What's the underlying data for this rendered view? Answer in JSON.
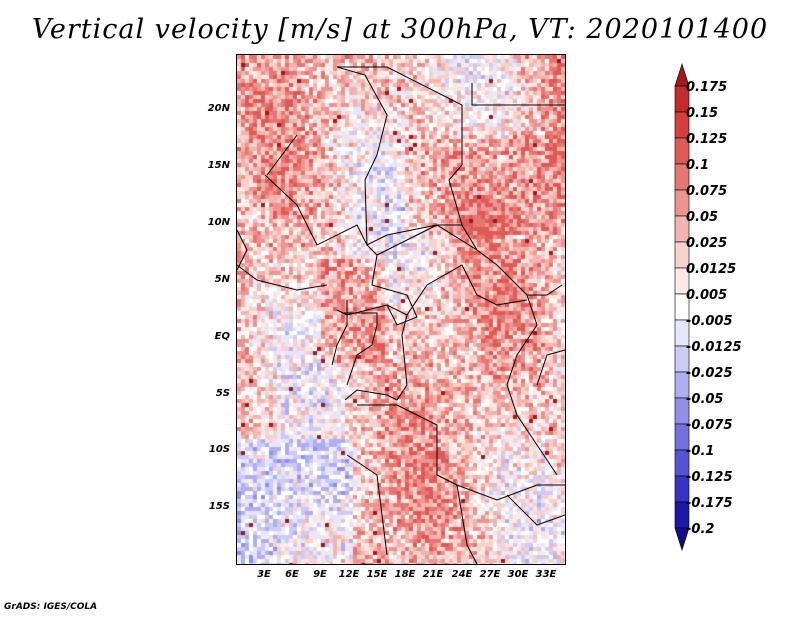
{
  "title": "Vertical velocity [m/s] at 300hPa, VT: 2020101400",
  "footer": "GrADS: IGES/COLA",
  "chart_data": {
    "type": "heatmap",
    "variable": "Vertical velocity",
    "units": "m/s",
    "level": "300hPa",
    "valid_time": "2020101400",
    "lat_ticks": [
      "20N",
      "15N",
      "10N",
      "5N",
      "EQ",
      "5S",
      "10S",
      "15S"
    ],
    "lon_ticks": [
      "3E",
      "6E",
      "9E",
      "12E",
      "15E",
      "18E",
      "21E",
      "24E",
      "27E",
      "30E",
      "33E"
    ],
    "colorbar": {
      "labels": [
        "0.175",
        "0.15",
        "0.125",
        "0.1",
        "0.075",
        "0.05",
        "0.025",
        "0.0125",
        "0.005",
        "-0.005",
        "-0.0125",
        "-0.025",
        "-0.05",
        "-0.075",
        "-0.1",
        "-0.125",
        "-0.175",
        "-0.2"
      ],
      "colors": [
        "#a0191e",
        "#c52a2c",
        "#d63d3b",
        "#e05a55",
        "#e87670",
        "#ee948f",
        "#f3b3ae",
        "#f8d0cc",
        "#fce9e7",
        "#ffffff",
        "#e6e6fb",
        "#cbcbf6",
        "#aeaef0",
        "#9090e9",
        "#7171e0",
        "#5454d6",
        "#3535c5",
        "#1b1ba8",
        "#0e0e8c"
      ]
    }
  }
}
